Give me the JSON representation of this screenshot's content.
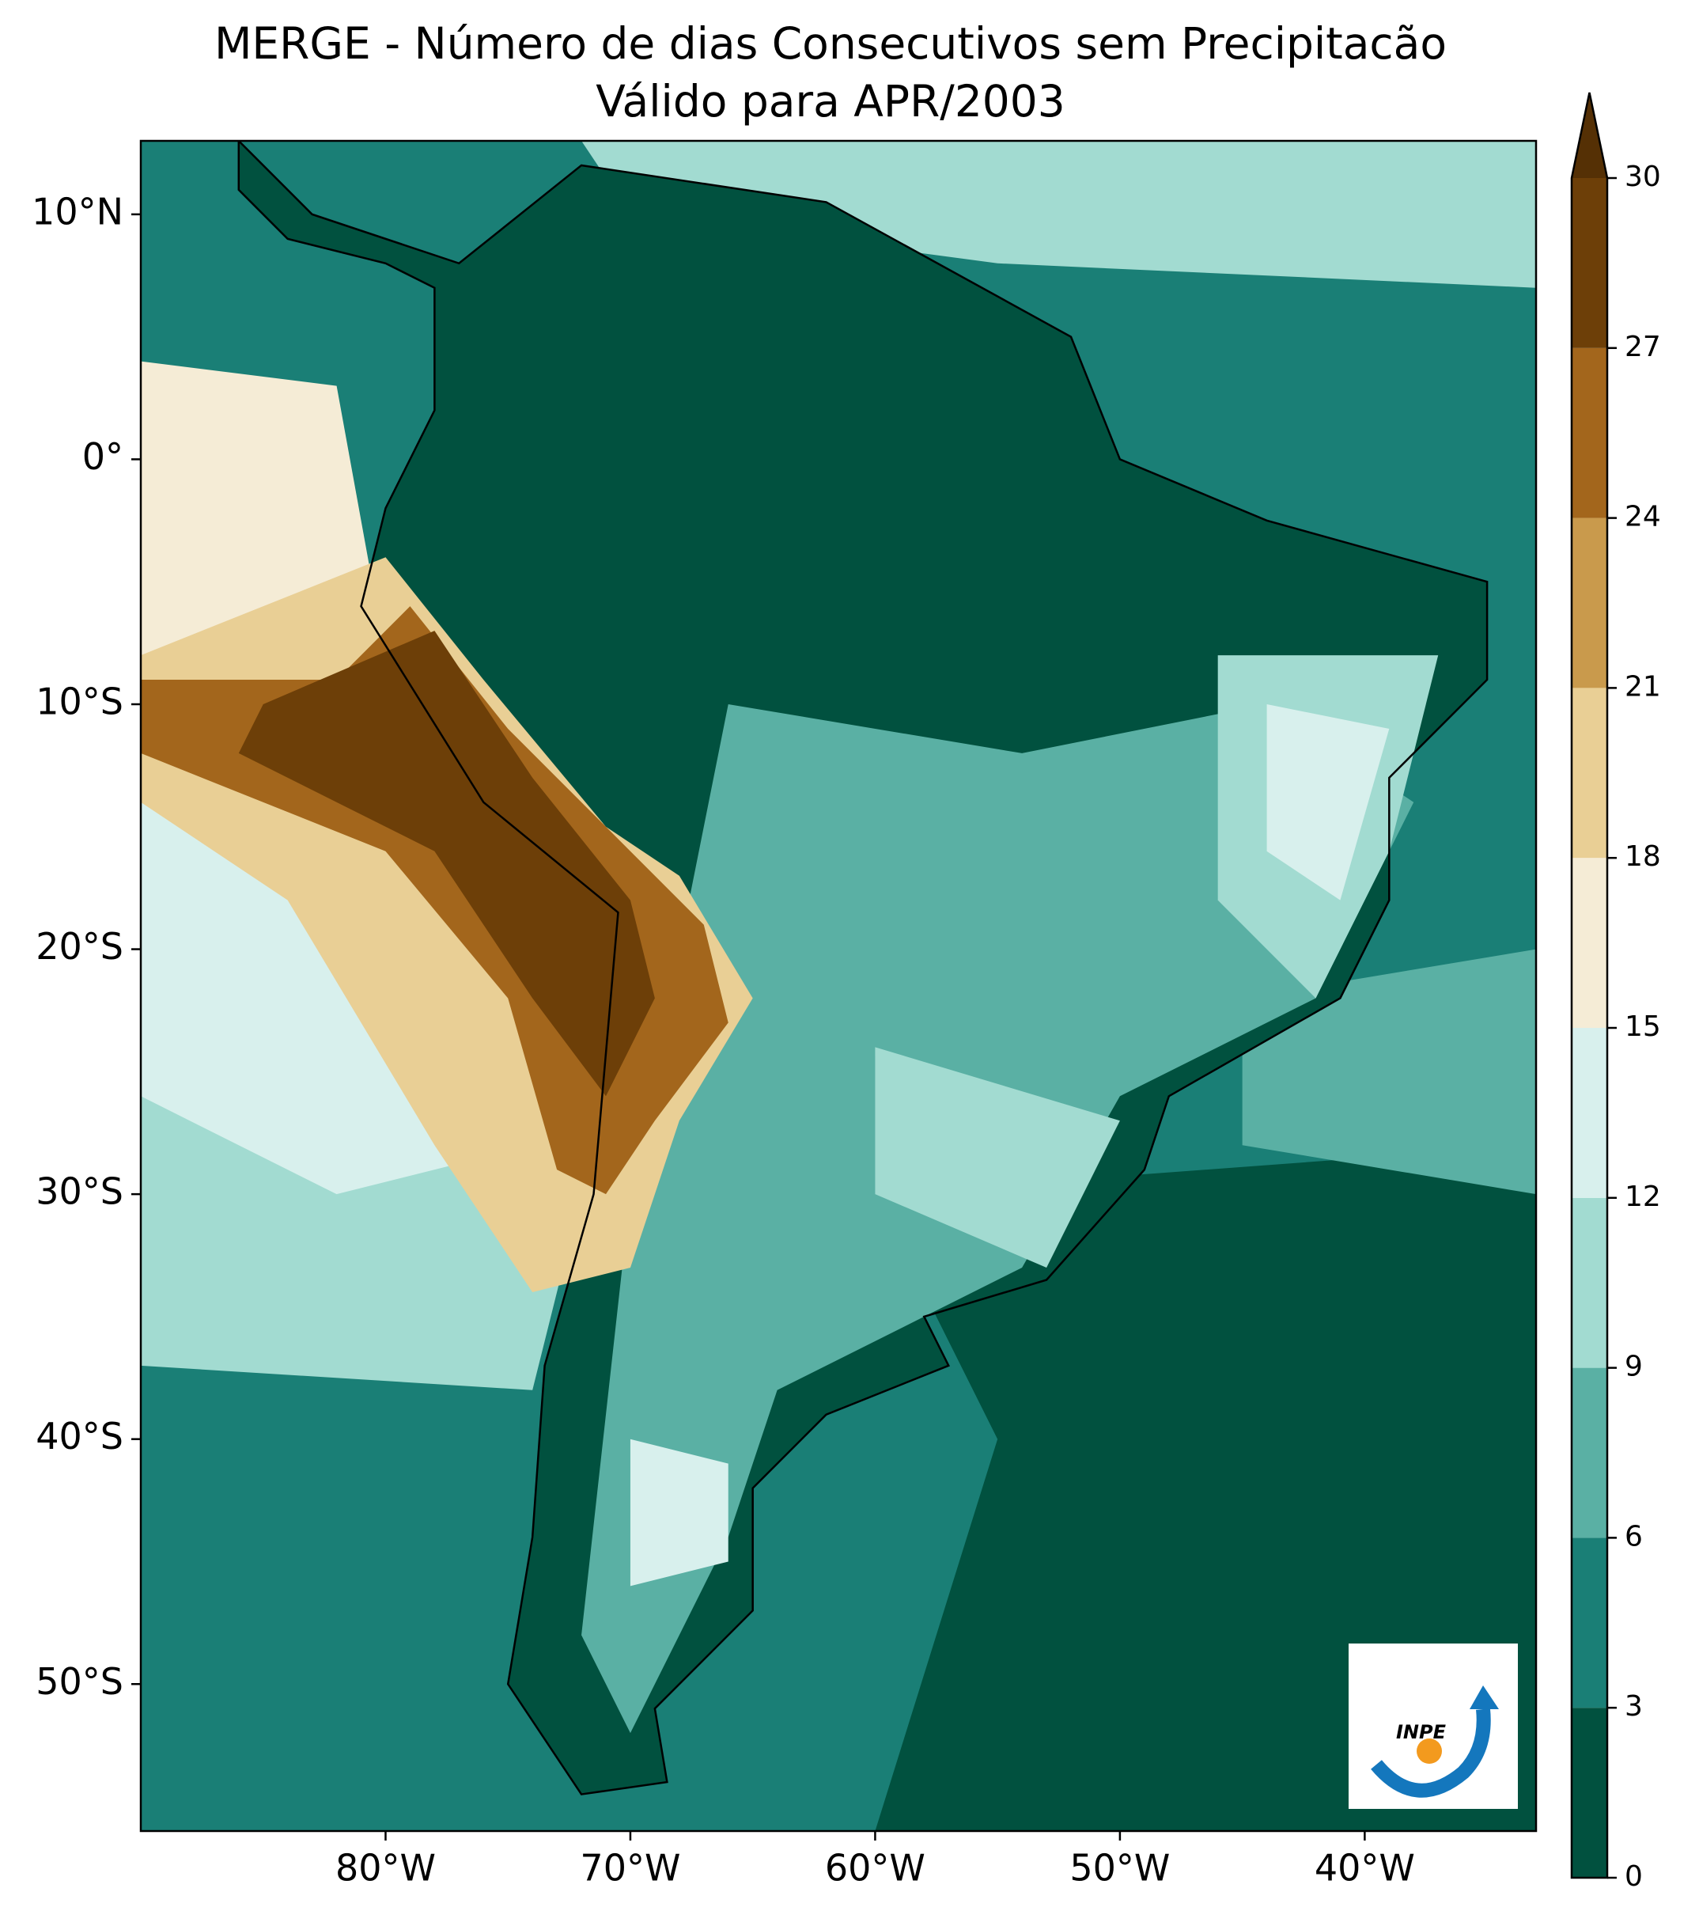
{
  "chart_data": {
    "type": "map",
    "title": "MERGE - Número de dias Consecutivos sem Precipitacão",
    "subtitle": "Válido para APR/2003",
    "xlim": [
      -90,
      -33
    ],
    "ylim": [
      -56,
      13
    ],
    "xticks": [
      {
        "value": -80,
        "label": "80°W"
      },
      {
        "value": -70,
        "label": "70°W"
      },
      {
        "value": -60,
        "label": "60°W"
      },
      {
        "value": -50,
        "label": "50°W"
      },
      {
        "value": -40,
        "label": "40°W"
      }
    ],
    "yticks": [
      {
        "value": 10,
        "label": "10°N"
      },
      {
        "value": 0,
        "label": "0°"
      },
      {
        "value": -10,
        "label": "10°S"
      },
      {
        "value": -20,
        "label": "20°S"
      },
      {
        "value": -30,
        "label": "30°S"
      },
      {
        "value": -40,
        "label": "40°S"
      },
      {
        "value": -50,
        "label": "50°S"
      }
    ],
    "colorbar": {
      "ticks": [
        0,
        3,
        6,
        9,
        12,
        15,
        18,
        21,
        24,
        27,
        30
      ],
      "colors": [
        "#01513f",
        "#1a7f76",
        "#5ab0a4",
        "#a2dbd1",
        "#d8f0ed",
        "#f5ecd6",
        "#e9cf95",
        "#c99a4c",
        "#a3661c",
        "#6d3f08",
        "#553005"
      ],
      "extend": "max"
    },
    "logo": {
      "text": "INPE"
    }
  }
}
